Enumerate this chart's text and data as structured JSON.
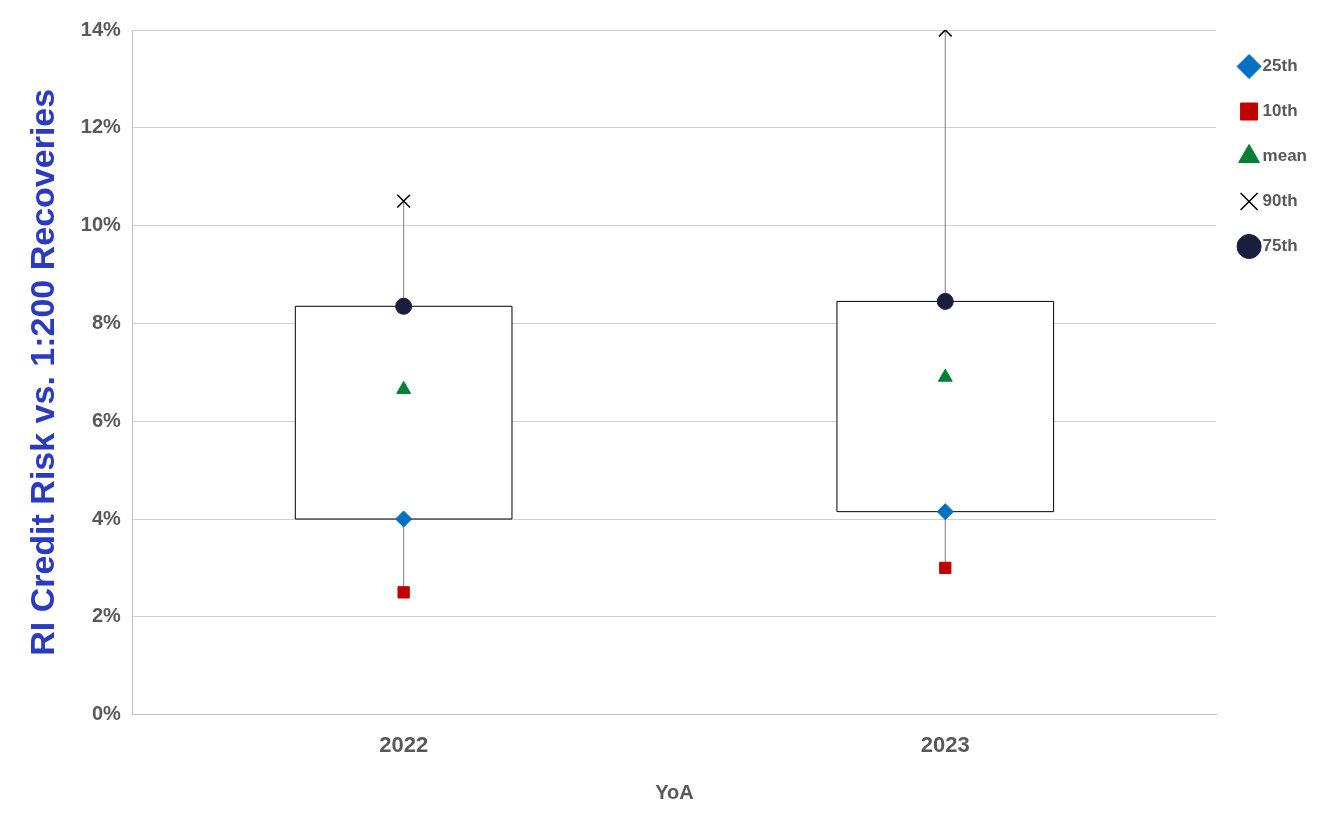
{
  "chart_data": {
    "type": "scatter",
    "xlabel": "YoA",
    "ylabel": "RI Credit Risk vs. 1:200 Recoveries",
    "categories": [
      "2022",
      "2023"
    ],
    "series": [
      {
        "type": "box",
        "color": "#000000",
        "boxes": [
          {
            "low": 2.5,
            "q1": 4.0,
            "q3": 8.35,
            "high": 10.5
          },
          {
            "low": 3.0,
            "q1": 4.15,
            "q3": 8.45,
            "high": 14.0
          }
        ]
      },
      {
        "name": "25th",
        "color": "#0070c0",
        "marker": "diamond",
        "values": [
          4.0,
          4.15
        ]
      },
      {
        "name": "10th",
        "color": "#c00000",
        "marker": "square",
        "values": [
          2.5,
          3.0
        ]
      },
      {
        "name": "mean",
        "color": "#008037",
        "marker": "triangle",
        "values": [
          6.65,
          6.9
        ]
      },
      {
        "name": "90th",
        "color": "#000000",
        "marker": "cross",
        "values": [
          10.5,
          14.0
        ]
      },
      {
        "name": "75th",
        "color": "#1b1d3d",
        "marker": "circle",
        "values": [
          8.35,
          8.45
        ]
      }
    ],
    "ylim": [
      0,
      14
    ],
    "yticks": [
      {
        "value": 0,
        "label": "0%"
      },
      {
        "value": 2,
        "label": "2%"
      },
      {
        "value": 4,
        "label": "4%"
      },
      {
        "value": 6,
        "label": "6%"
      },
      {
        "value": 8,
        "label": "8%"
      },
      {
        "value": 10,
        "label": "10%"
      },
      {
        "value": 12,
        "label": "12%"
      },
      {
        "value": 14,
        "label": "14%"
      }
    ],
    "grid": "y",
    "legend": "top right"
  }
}
